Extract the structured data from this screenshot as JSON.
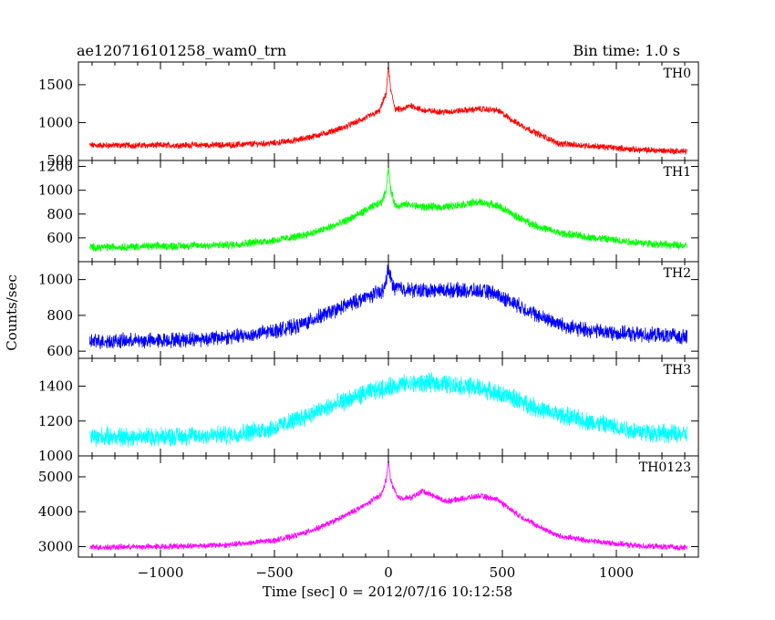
{
  "header": {
    "title": "ae120716101258_wam0_trn",
    "bin_time": "Bin time: 1.0 s"
  },
  "chart_data": {
    "type": "line",
    "xlabel": "Time [sec] 0 = 2012/07/16 10:12:58",
    "ylabel": "Counts/sec",
    "xlim": [
      -1360,
      1360
    ],
    "xticks": [
      -1000,
      -500,
      0,
      500,
      1000
    ],
    "grid": false,
    "panels": [
      {
        "name": "TH0",
        "color": "#ff0000",
        "ylim": [
          500,
          1800
        ],
        "yticks": [
          500,
          1000,
          1500
        ],
        "noise": 35,
        "points": [
          [
            -1310,
            700
          ],
          [
            -1000,
            700
          ],
          [
            -700,
            705
          ],
          [
            -500,
            730
          ],
          [
            -400,
            770
          ],
          [
            -300,
            840
          ],
          [
            -200,
            930
          ],
          [
            -100,
            1060
          ],
          [
            -40,
            1150
          ],
          [
            -10,
            1380
          ],
          [
            0,
            1760
          ],
          [
            10,
            1420
          ],
          [
            30,
            1180
          ],
          [
            60,
            1170
          ],
          [
            100,
            1230
          ],
          [
            150,
            1160
          ],
          [
            250,
            1140
          ],
          [
            400,
            1180
          ],
          [
            480,
            1160
          ],
          [
            560,
            1000
          ],
          [
            650,
            860
          ],
          [
            750,
            720
          ],
          [
            900,
            690
          ],
          [
            1100,
            640
          ],
          [
            1310,
            620
          ]
        ]
      },
      {
        "name": "TH1",
        "color": "#00ff00",
        "ylim": [
          400,
          1250
        ],
        "yticks": [
          600,
          800,
          1000,
          1200
        ],
        "noise": 28,
        "points": [
          [
            -1310,
            520
          ],
          [
            -1000,
            530
          ],
          [
            -700,
            540
          ],
          [
            -500,
            580
          ],
          [
            -400,
            610
          ],
          [
            -300,
            660
          ],
          [
            -200,
            730
          ],
          [
            -100,
            830
          ],
          [
            -30,
            900
          ],
          [
            -10,
            1000
          ],
          [
            0,
            1200
          ],
          [
            10,
            1000
          ],
          [
            30,
            870
          ],
          [
            80,
            880
          ],
          [
            150,
            860
          ],
          [
            250,
            860
          ],
          [
            400,
            900
          ],
          [
            480,
            870
          ],
          [
            560,
            780
          ],
          [
            650,
            700
          ],
          [
            750,
            640
          ],
          [
            900,
            600
          ],
          [
            1100,
            560
          ],
          [
            1310,
            530
          ]
        ]
      },
      {
        "name": "TH2",
        "color": "#0000ff",
        "ylim": [
          560,
          1100
        ],
        "yticks": [
          600,
          800,
          1000
        ],
        "noise": 35,
        "points": [
          [
            -1310,
            655
          ],
          [
            -1000,
            660
          ],
          [
            -800,
            670
          ],
          [
            -600,
            690
          ],
          [
            -400,
            740
          ],
          [
            -250,
            820
          ],
          [
            -100,
            900
          ],
          [
            -20,
            940
          ],
          [
            0,
            1060
          ],
          [
            20,
            960
          ],
          [
            100,
            940
          ],
          [
            300,
            940
          ],
          [
            450,
            930
          ],
          [
            550,
            870
          ],
          [
            650,
            800
          ],
          [
            800,
            730
          ],
          [
            1000,
            700
          ],
          [
            1310,
            680
          ]
        ]
      },
      {
        "name": "TH3",
        "color": "#00ffff",
        "ylim": [
          1000,
          1560
        ],
        "yticks": [
          1000,
          1200,
          1400
        ],
        "noise": 45,
        "points": [
          [
            -1310,
            1110
          ],
          [
            -1000,
            1110
          ],
          [
            -700,
            1120
          ],
          [
            -500,
            1160
          ],
          [
            -300,
            1260
          ],
          [
            -100,
            1360
          ],
          [
            50,
            1410
          ],
          [
            200,
            1420
          ],
          [
            400,
            1390
          ],
          [
            550,
            1330
          ],
          [
            700,
            1250
          ],
          [
            900,
            1190
          ],
          [
            1100,
            1140
          ],
          [
            1310,
            1120
          ]
        ]
      },
      {
        "name": "TH0123",
        "color": "#ff00ff",
        "ylim": [
          2700,
          5600
        ],
        "yticks": [
          3000,
          4000,
          5000
        ],
        "noise": 70,
        "points": [
          [
            -1310,
            2980
          ],
          [
            -1000,
            3000
          ],
          [
            -700,
            3050
          ],
          [
            -500,
            3180
          ],
          [
            -400,
            3330
          ],
          [
            -300,
            3550
          ],
          [
            -200,
            3850
          ],
          [
            -100,
            4200
          ],
          [
            -30,
            4500
          ],
          [
            -10,
            4900
          ],
          [
            0,
            5450
          ],
          [
            10,
            4900
          ],
          [
            40,
            4400
          ],
          [
            100,
            4400
          ],
          [
            150,
            4600
          ],
          [
            250,
            4300
          ],
          [
            400,
            4450
          ],
          [
            480,
            4350
          ],
          [
            560,
            3950
          ],
          [
            650,
            3600
          ],
          [
            750,
            3300
          ],
          [
            900,
            3150
          ],
          [
            1100,
            3020
          ],
          [
            1310,
            2970
          ]
        ]
      }
    ]
  }
}
